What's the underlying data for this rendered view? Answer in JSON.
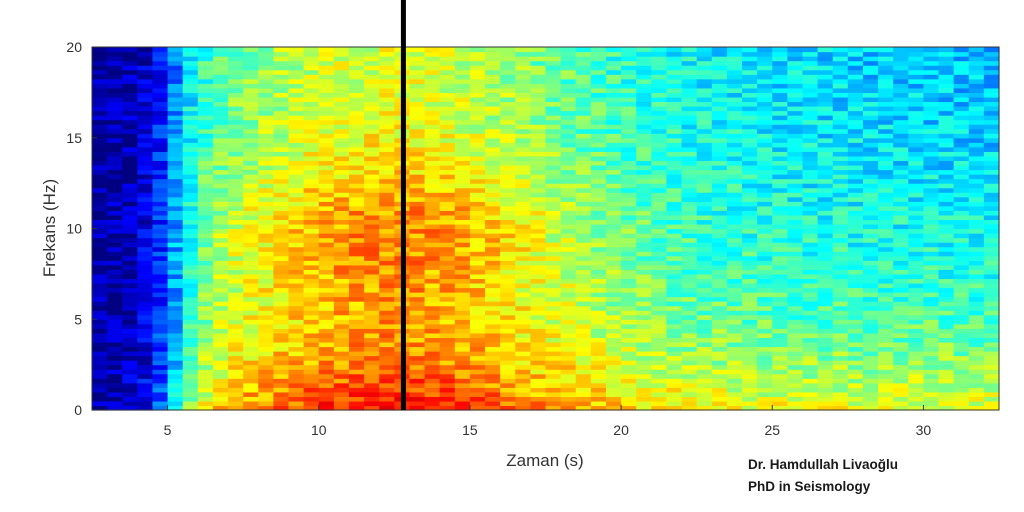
{
  "chart_data": {
    "type": "heatmap",
    "title": "",
    "xlabel": "Zaman (s)",
    "ylabel": "Frekans (Hz)",
    "xlim": [
      2.5,
      32.5
    ],
    "ylim": [
      0,
      20
    ],
    "xticks": [
      5,
      10,
      15,
      20,
      25,
      30
    ],
    "yticks": [
      0,
      5,
      10,
      15,
      20
    ],
    "colormap": "jet",
    "grid": false,
    "marker_line": {
      "x": 12.8,
      "color": "#000000"
    },
    "energy_model": {
      "description_values": [
        {
          "time_s": 3,
          "freq_hz": 10,
          "level": 0.05
        },
        {
          "time_s": 7,
          "freq_hz": 5,
          "level": 0.55
        },
        {
          "time_s": 12,
          "freq_hz": 1,
          "level": 0.97
        },
        {
          "time_s": 15,
          "freq_hz": 3,
          "level": 0.92
        },
        {
          "time_s": 20,
          "freq_hz": 8,
          "level": 0.6
        },
        {
          "time_s": 30,
          "freq_hz": 2,
          "level": 0.75
        },
        {
          "time_s": 30,
          "freq_hz": 18,
          "level": 0.35
        }
      ]
    }
  },
  "credits": {
    "name": "Dr. Hamdullah Livaoğlu",
    "title": "PhD in Seismology"
  }
}
